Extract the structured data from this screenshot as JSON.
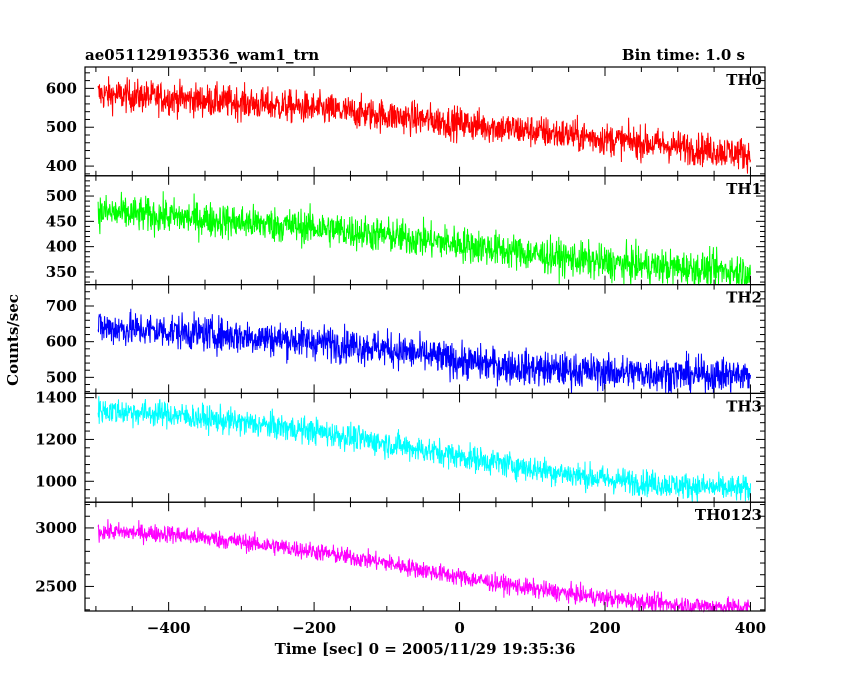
{
  "chart_data": {
    "type": "line",
    "title": "ae051129193536_wam1_trn",
    "subtitle": "Bin time: 1.0 s",
    "xlabel": "Time [sec] 0 = 2005/11/29 19:35:36",
    "ylabel": "Counts/sec",
    "xlim": [
      -515,
      420
    ],
    "x_ticks": [
      -400,
      -200,
      0,
      200,
      400
    ],
    "x_range": [
      -497,
      400
    ],
    "grid": false,
    "panels": [
      {
        "name": "TH0",
        "color": "#ff0000",
        "ylim": [
          375,
          655
        ],
        "y_ticks": [
          400,
          500,
          600
        ],
        "x": [
          -497,
          -400,
          -300,
          -200,
          -100,
          0,
          100,
          200,
          300,
          400
        ],
        "values": [
          585,
          575,
          563,
          548,
          530,
          510,
          490,
          470,
          450,
          430
        ],
        "noise": 30
      },
      {
        "name": "TH1",
        "color": "#00ff00",
        "ylim": [
          325,
          540
        ],
        "y_ticks": [
          350,
          400,
          450,
          500
        ],
        "x": [
          -497,
          -400,
          -300,
          -200,
          -100,
          0,
          100,
          200,
          300,
          400
        ],
        "values": [
          468,
          460,
          448,
          438,
          422,
          405,
          385,
          368,
          358,
          350
        ],
        "noise": 25
      },
      {
        "name": "TH2",
        "color": "#0000ff",
        "ylim": [
          455,
          760
        ],
        "y_ticks": [
          500,
          600,
          700
        ],
        "x": [
          -497,
          -400,
          -300,
          -200,
          -100,
          0,
          100,
          200,
          300,
          400
        ],
        "values": [
          640,
          630,
          615,
          600,
          580,
          545,
          525,
          515,
          508,
          505
        ],
        "noise": 35
      },
      {
        "name": "TH3",
        "color": "#00ffff",
        "ylim": [
          900,
          1420
        ],
        "y_ticks": [
          1000,
          1200,
          1400
        ],
        "x": [
          -497,
          -400,
          -300,
          -200,
          -100,
          0,
          100,
          200,
          300,
          400
        ],
        "values": [
          1340,
          1320,
          1280,
          1240,
          1180,
          1120,
          1060,
          1010,
          980,
          960
        ],
        "noise": 45
      },
      {
        "name": "TH0123",
        "color": "#ff00ff",
        "ylim": [
          2290,
          3220
        ],
        "y_ticks": [
          2500,
          3000
        ],
        "x": [
          -497,
          -400,
          -300,
          -200,
          -100,
          0,
          100,
          200,
          300,
          400
        ],
        "values": [
          2970,
          2950,
          2880,
          2800,
          2700,
          2580,
          2480,
          2400,
          2340,
          2320
        ],
        "noise": 55
      }
    ]
  }
}
